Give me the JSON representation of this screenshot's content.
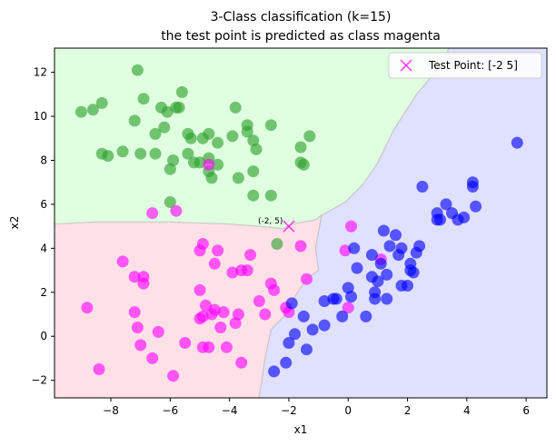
{
  "chart_data": {
    "type": "scatter",
    "title": "3-Class classification (k=15)",
    "subtitle": "the test point is predicted as class magenta",
    "xlabel": "x1",
    "ylabel": "x2",
    "xlim": [
      -9.9,
      6.7
    ],
    "ylim": [
      -2.8,
      13.1
    ],
    "xticks": [
      -8,
      -6,
      -4,
      -2,
      0,
      2,
      4,
      6
    ],
    "yticks": [
      -2,
      0,
      2,
      4,
      6,
      8,
      10,
      12
    ],
    "grid": false,
    "legend": {
      "placement": "top-right",
      "entries": [
        "Test Point: [-2  5]"
      ]
    },
    "regions": [
      {
        "class": "green",
        "color": "#e0ffe0"
      },
      {
        "class": "magenta",
        "color": "#ffe0e6"
      },
      {
        "class": "blue",
        "color": "#e0e0ff"
      }
    ],
    "series": [
      {
        "color": "#2ca02c",
        "points": [
          [
            -9.0,
            10.2
          ],
          [
            -8.6,
            10.3
          ],
          [
            -8.3,
            10.6
          ],
          [
            -8.3,
            8.3
          ],
          [
            -8.1,
            8.2
          ],
          [
            -7.6,
            8.4
          ],
          [
            -7.1,
            12.1
          ],
          [
            -7.2,
            9.8
          ],
          [
            -7.0,
            8.3
          ],
          [
            -6.9,
            10.8
          ],
          [
            -6.5,
            8.3
          ],
          [
            -6.5,
            9.2
          ],
          [
            -6.3,
            10.4
          ],
          [
            -6.2,
            9.5
          ],
          [
            -6.1,
            10.2
          ],
          [
            -6.0,
            7.6
          ],
          [
            -5.9,
            8.0
          ],
          [
            -5.8,
            10.4
          ],
          [
            -5.7,
            10.4
          ],
          [
            -5.6,
            11.1
          ],
          [
            -5.4,
            9.2
          ],
          [
            -5.4,
            8.3
          ],
          [
            -5.3,
            9.0
          ],
          [
            -5.2,
            7.9
          ],
          [
            -5.0,
            7.9
          ],
          [
            -4.9,
            9.0
          ],
          [
            -4.7,
            8.1
          ],
          [
            -4.7,
            7.5
          ],
          [
            -4.7,
            9.2
          ],
          [
            -4.6,
            7.2
          ],
          [
            -4.4,
            8.8
          ],
          [
            -4.4,
            7.8
          ],
          [
            -3.9,
            9.1
          ],
          [
            -3.7,
            7.2
          ],
          [
            -3.4,
            9.6
          ],
          [
            -3.4,
            9.3
          ],
          [
            -3.2,
            8.9
          ],
          [
            -3.2,
            7.5
          ],
          [
            -3.1,
            8.5
          ],
          [
            -2.6,
            9.6
          ],
          [
            -3.2,
            6.4
          ],
          [
            -2.6,
            6.4
          ],
          [
            -1.6,
            8.6
          ],
          [
            -1.6,
            7.9
          ],
          [
            -1.5,
            7.8
          ],
          [
            -1.3,
            9.1
          ],
          [
            -6.0,
            6.1
          ],
          [
            -3.8,
            10.4
          ],
          [
            -2.4,
            4.2
          ]
        ]
      },
      {
        "color": "#ff00ff",
        "points": [
          [
            -8.8,
            1.3
          ],
          [
            -8.4,
            -1.5
          ],
          [
            -7.6,
            3.4
          ],
          [
            -7.2,
            2.7
          ],
          [
            -7.2,
            1.1
          ],
          [
            -7.1,
            0.4
          ],
          [
            -6.9,
            2.7
          ],
          [
            -6.9,
            2.4
          ],
          [
            -6.6,
            -1.0
          ],
          [
            -6.4,
            0.2
          ],
          [
            -6.6,
            5.6
          ],
          [
            -5.9,
            -1.8
          ],
          [
            -5.5,
            -0.3
          ],
          [
            -5.0,
            2.1
          ],
          [
            -5.0,
            3.9
          ],
          [
            -5.0,
            0.8
          ],
          [
            -4.9,
            4.2
          ],
          [
            -4.8,
            1.4
          ],
          [
            -4.9,
            0.9
          ],
          [
            -4.7,
            -0.5
          ],
          [
            -4.6,
            1.0
          ],
          [
            -4.5,
            1.2
          ],
          [
            -4.5,
            3.3
          ],
          [
            -4.4,
            3.9
          ],
          [
            -4.3,
            0.4
          ],
          [
            -4.2,
            1.1
          ],
          [
            -4.1,
            -0.5
          ],
          [
            -3.9,
            2.9
          ],
          [
            -3.8,
            0.6
          ],
          [
            -3.7,
            1.0
          ],
          [
            -3.6,
            3.0
          ],
          [
            -3.6,
            -1.2
          ],
          [
            -3.4,
            3.0
          ],
          [
            -3.3,
            3.7
          ],
          [
            -3.0,
            1.6
          ],
          [
            -2.8,
            1.0
          ],
          [
            -2.6,
            2.4
          ],
          [
            -2.5,
            2.1
          ],
          [
            -2.1,
            1.3
          ],
          [
            -2.0,
            1.1
          ],
          [
            -1.6,
            4.1
          ],
          [
            -1.4,
            2.6
          ],
          [
            0.1,
            5.0
          ],
          [
            -0.1,
            3.9
          ],
          [
            0.0,
            1.3
          ],
          [
            1.1,
            3.5
          ],
          [
            -4.7,
            7.8
          ],
          [
            -5.8,
            5.7
          ],
          [
            -4.9,
            -0.5
          ],
          [
            -7.0,
            -0.4
          ]
        ]
      },
      {
        "color": "#0000ff",
        "points": [
          [
            -2.5,
            -1.6
          ],
          [
            -2.1,
            -1.2
          ],
          [
            -2.0,
            -0.3
          ],
          [
            -1.9,
            1.5
          ],
          [
            -1.8,
            0.1
          ],
          [
            -1.5,
            0.9
          ],
          [
            -1.4,
            -0.6
          ],
          [
            -1.2,
            0.3
          ],
          [
            -0.8,
            0.5
          ],
          [
            -0.8,
            1.6
          ],
          [
            -0.5,
            1.7
          ],
          [
            -0.4,
            1.7
          ],
          [
            -0.2,
            0.9
          ],
          [
            0.0,
            2.2
          ],
          [
            0.1,
            1.8
          ],
          [
            0.2,
            4.0
          ],
          [
            0.3,
            3.1
          ],
          [
            0.6,
            0.9
          ],
          [
            0.8,
            3.7
          ],
          [
            0.8,
            2.7
          ],
          [
            0.9,
            2.0
          ],
          [
            0.9,
            1.7
          ],
          [
            1.0,
            2.5
          ],
          [
            1.1,
            3.3
          ],
          [
            1.2,
            4.8
          ],
          [
            1.3,
            2.8
          ],
          [
            1.3,
            1.7
          ],
          [
            1.4,
            4.1
          ],
          [
            1.6,
            4.6
          ],
          [
            1.7,
            3.7
          ],
          [
            1.8,
            4.0
          ],
          [
            1.8,
            2.3
          ],
          [
            2.0,
            2.3
          ],
          [
            2.1,
            3.3
          ],
          [
            2.1,
            3.0
          ],
          [
            2.2,
            2.9
          ],
          [
            2.3,
            3.8
          ],
          [
            2.4,
            4.1
          ],
          [
            2.5,
            6.8
          ],
          [
            3.0,
            5.6
          ],
          [
            3.0,
            5.3
          ],
          [
            3.3,
            6.0
          ],
          [
            3.5,
            5.6
          ],
          [
            3.7,
            5.3
          ],
          [
            3.9,
            5.4
          ],
          [
            4.2,
            6.8
          ],
          [
            4.2,
            7.0
          ],
          [
            4.3,
            5.9
          ],
          [
            5.7,
            8.8
          ],
          [
            3.1,
            5.3
          ]
        ]
      }
    ],
    "test_point": {
      "x": -2,
      "y": 5,
      "color": "#ff00ff",
      "label": "(-2, 5)"
    }
  }
}
